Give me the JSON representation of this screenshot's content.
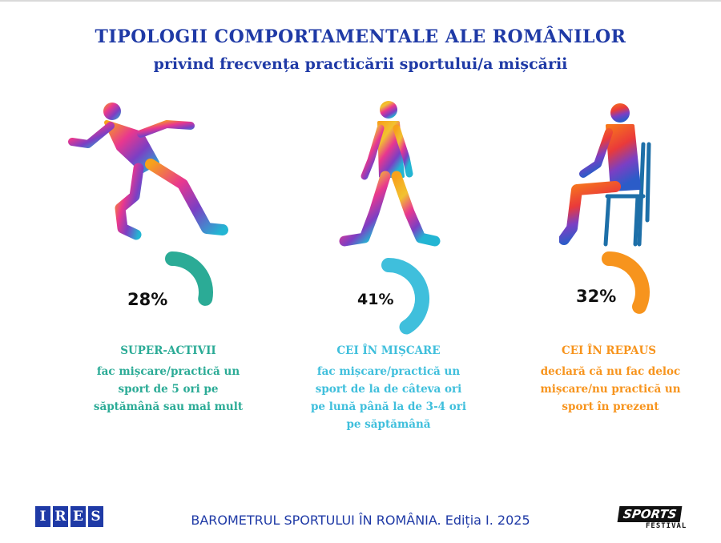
{
  "header": {
    "title": "TIPOLOGII COMPORTAMENTALE ALE ROMÂNILOR",
    "subtitle": "privind frecvența practicării sportului/a mișcării"
  },
  "chart_data": {
    "type": "pie",
    "categories": [
      "SUPER-ACTIVII",
      "CEI ÎN MIȘCARE",
      "CEI ÎN REPAUS"
    ],
    "values": [
      28,
      41,
      32
    ],
    "labels": [
      "28%",
      "41%",
      "32%"
    ],
    "colors": [
      "#2bab96",
      "#3fbfdc",
      "#f7941d"
    ],
    "descriptions": [
      [
        "fac mișcare/practică un",
        "sport de 5 ori pe",
        "săptămână sau mai mult"
      ],
      [
        "fac mișcare/practică un",
        "sport de la de câteva ori",
        "pe lună până la de 3-4 ori",
        "pe săptămână"
      ],
      [
        "declară că nu fac deloc",
        "mișcare/nu practică un",
        "sport în prezent"
      ]
    ]
  },
  "footer": {
    "text": "BAROMETRUL SPORTULUI ÎN ROMÂNIA. Ediția I. 2025",
    "ires_logo": "IRES",
    "sports_logo": "SPORTS",
    "sports_logo_sub": "FESTIVAL"
  },
  "icons": [
    "runner-icon",
    "walker-icon",
    "sitting-person-icon"
  ]
}
